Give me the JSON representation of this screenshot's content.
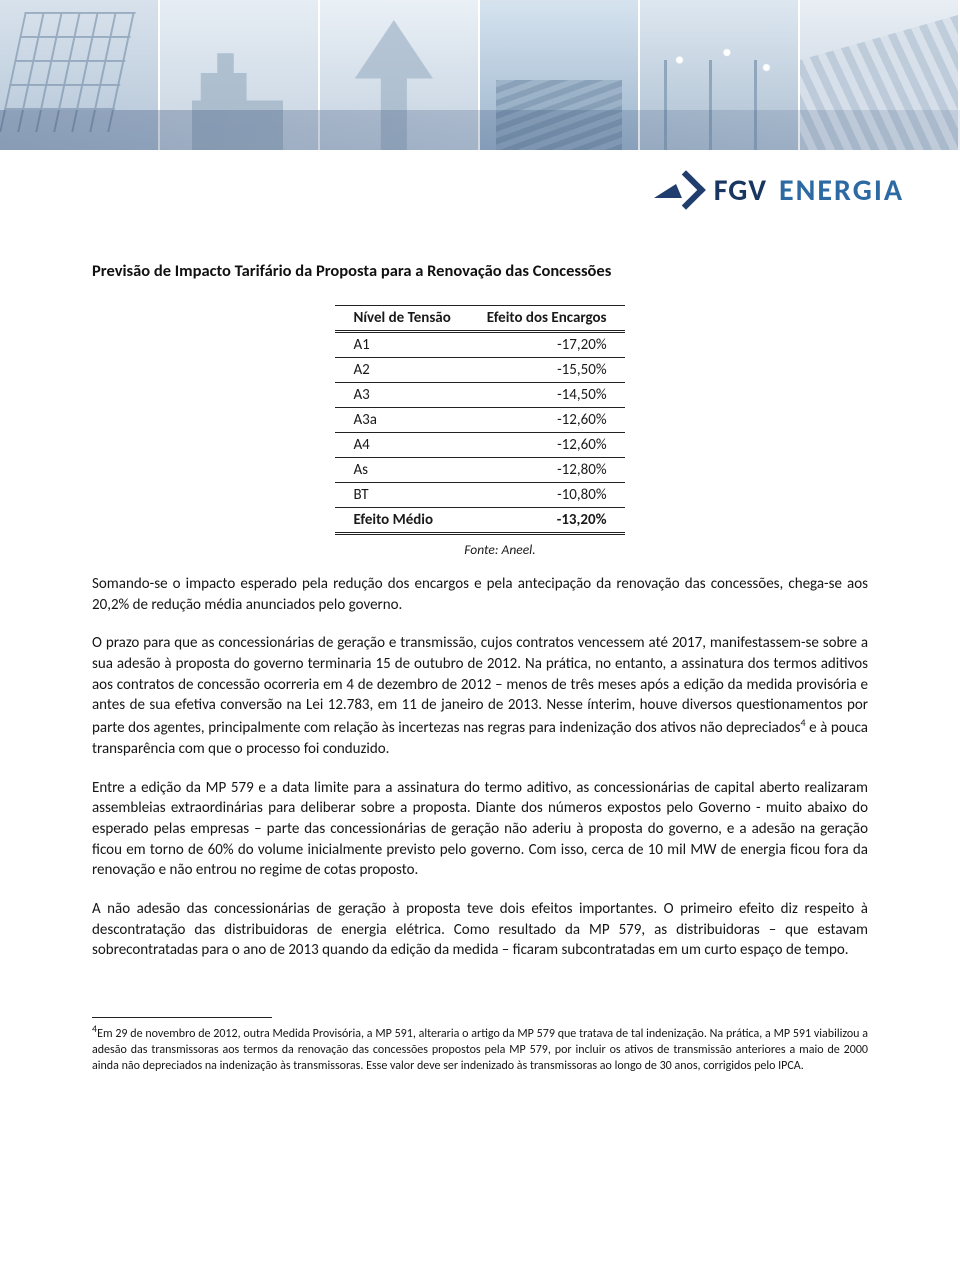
{
  "header": {
    "logo_fgv": "FGV",
    "logo_energia": "ENERGIA",
    "logo_color_primary": "#18365f",
    "logo_color_secondary": "#2d6aa3"
  },
  "document": {
    "title": "Previsão de Impacto Tarifário da Proposta para a Renovação das Concessões"
  },
  "table": {
    "columns": [
      "Nível de Tensão",
      "Efeito dos Encargos"
    ],
    "rows": [
      [
        "A1",
        "-17,20%"
      ],
      [
        "A2",
        "-15,50%"
      ],
      [
        "A3",
        "-14,50%"
      ],
      [
        "A3a",
        "-12,60%"
      ],
      [
        "A4",
        "-12,60%"
      ],
      [
        "As",
        "-12,80%"
      ],
      [
        "BT",
        "-10,80%"
      ]
    ],
    "footer": [
      "Efeito Médio",
      "-13,20%"
    ],
    "caption": "Fonte: Aneel.",
    "border_color": "#222222",
    "font_size": 15
  },
  "paragraphs": {
    "p1": "Somando-se o impacto esperado pela redução dos encargos e pela antecipação da renovação das concessões, chega-se aos 20,2% de redução média anunciados pelo governo.",
    "p2a": "O prazo para que as concessionárias de geração e transmissão, cujos contratos vencessem até 2017, manifestassem-se sobre a sua adesão à proposta do governo terminaria 15 de outubro de 2012. Na prática, no entanto, a assinatura dos termos aditivos aos contratos de concessão ocorreria em 4 de dezembro de 2012 – menos de três meses após a edição da medida provisória e antes de sua efetiva conversão na Lei 12.783, em 11 de janeiro de 2013. Nesse ínterim, houve diversos questionamentos por parte dos agentes, principalmente com relação às incertezas nas regras para indenização dos ativos não depreciados",
    "p2b": " e à pouca transparência com que o processo foi conduzido.",
    "p3": "Entre a edição da MP 579 e a data limite para a assinatura do termo aditivo, as concessionárias de capital aberto realizaram assembleias extraordinárias para deliberar sobre a proposta. Diante dos números expostos pelo Governo - muito abaixo do esperado pelas empresas – parte das concessionárias de geração não aderiu à proposta do governo, e a adesão na geração ficou em torno de 60% do volume inicialmente previsto pelo governo. Com isso, cerca de 10 mil MW de energia ficou fora da renovação e não entrou no regime de cotas proposto.",
    "p4": "A não adesão das concessionárias de geração à proposta teve dois efeitos importantes. O primeiro efeito diz respeito à descontratação das distribuidoras de energia elétrica. Como resultado da MP 579, as distribuidoras – que estavam sobrecontratadas para o ano de 2013 quando da edição da medida – ficaram subcontratadas em um curto espaço de tempo."
  },
  "footnote": {
    "marker": "4",
    "text": "Em 29 de novembro de 2012, outra Medida Provisória, a MP 591, alteraria o artigo da MP 579 que tratava de tal indenização. Na prática, a MP 591 viabilizou a adesão das transmissoras aos termos da renovação das concessões propostos pela MP 579, por incluir os ativos de transmissão anteriores a maio de 2000 ainda não depreciados na indenização às transmissoras. Esse valor deve ser indenizado às transmissoras ao longo de 30 anos, corrigidos pelo IPCA."
  }
}
